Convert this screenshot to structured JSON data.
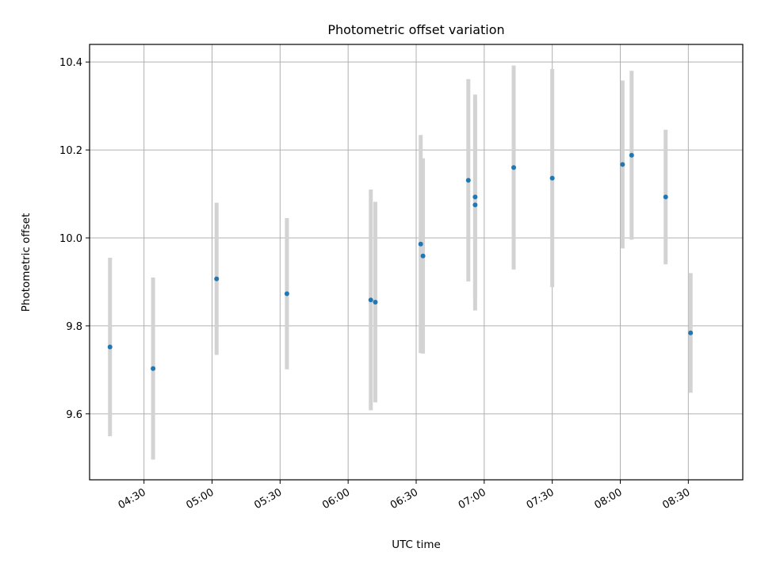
{
  "chart_data": {
    "type": "scatter",
    "title": "Photometric offset variation",
    "xlabel": "UTC time",
    "ylabel": "Photometric offset",
    "x_ticks": [
      "04:30",
      "05:00",
      "05:30",
      "06:00",
      "06:30",
      "07:00",
      "07:30",
      "08:00",
      "08:30"
    ],
    "y_ticks": [
      "9.6",
      "9.8",
      "10.0",
      "10.2",
      "10.4"
    ],
    "xlim": [
      "04:06",
      "08:54"
    ],
    "ylim": [
      9.45,
      10.44
    ],
    "grid": true,
    "point_color": "#1f77b4",
    "errorbar_color": "#d3d3d3",
    "points": [
      {
        "time": "04:15",
        "y": 9.752,
        "err": 0.203
      },
      {
        "time": "04:34",
        "y": 9.703,
        "err": 0.207
      },
      {
        "time": "05:02",
        "y": 9.907,
        "err": 0.173
      },
      {
        "time": "05:33",
        "y": 9.873,
        "err": 0.172
      },
      {
        "time": "06:10",
        "y": 9.859,
        "err": 0.251
      },
      {
        "time": "06:12",
        "y": 9.854,
        "err": 0.228
      },
      {
        "time": "06:32",
        "y": 9.986,
        "err": 0.248
      },
      {
        "time": "06:33",
        "y": 9.959,
        "err": 0.222
      },
      {
        "time": "06:53",
        "y": 10.131,
        "err": 0.23
      },
      {
        "time": "06:56",
        "y": 10.075,
        "err": 0.24
      },
      {
        "time": "06:56",
        "y": 10.093,
        "err": 0.233
      },
      {
        "time": "07:13",
        "y": 10.16,
        "err": 0.232
      },
      {
        "time": "07:30",
        "y": 10.136,
        "err": 0.248
      },
      {
        "time": "08:01",
        "y": 10.167,
        "err": 0.191
      },
      {
        "time": "08:05",
        "y": 10.188,
        "err": 0.192
      },
      {
        "time": "08:20",
        "y": 10.093,
        "err": 0.153
      },
      {
        "time": "08:31",
        "y": 9.784,
        "err": 0.136
      }
    ]
  }
}
